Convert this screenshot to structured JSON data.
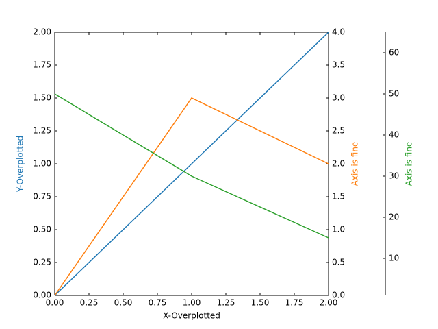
{
  "chart_data": {
    "type": "line",
    "x": [
      0,
      1,
      2
    ],
    "xlabel": "X-Overplotted",
    "ylabel": "Y-Overplotted",
    "y2label": "Axis is fine",
    "y3label": "Axis is fine",
    "xlim": [
      0,
      2
    ],
    "xticks": [
      {
        "value": 0,
        "label": "0.00"
      },
      {
        "value": 0.25,
        "label": "0.25"
      },
      {
        "value": 0.5,
        "label": "0.50"
      },
      {
        "value": 0.75,
        "label": "0.75"
      },
      {
        "value": 1,
        "label": "1.00"
      },
      {
        "value": 1.25,
        "label": "1.25"
      },
      {
        "value": 1.5,
        "label": "1.50"
      },
      {
        "value": 1.75,
        "label": "1.75"
      },
      {
        "value": 2,
        "label": "2.00"
      }
    ],
    "ylim": [
      0,
      2
    ],
    "yticks": [
      {
        "value": 0,
        "label": "0.00"
      },
      {
        "value": 0.25,
        "label": "0.25"
      },
      {
        "value": 0.5,
        "label": "0.50"
      },
      {
        "value": 0.75,
        "label": "0.75"
      },
      {
        "value": 1,
        "label": "1.00"
      },
      {
        "value": 1.25,
        "label": "1.25"
      },
      {
        "value": 1.5,
        "label": "1.50"
      },
      {
        "value": 1.75,
        "label": "1.75"
      },
      {
        "value": 2,
        "label": "2.00"
      }
    ],
    "y2lim": [
      0,
      4
    ],
    "y2ticks": [
      {
        "value": 0,
        "label": "0.0"
      },
      {
        "value": 0.5,
        "label": "0.5"
      },
      {
        "value": 1,
        "label": "1.0"
      },
      {
        "value": 1.5,
        "label": "1.5"
      },
      {
        "value": 2,
        "label": "2.0"
      },
      {
        "value": 2.5,
        "label": "2.5"
      },
      {
        "value": 3,
        "label": "3.0"
      },
      {
        "value": 3.5,
        "label": "3.5"
      },
      {
        "value": 4,
        "label": "4.0"
      }
    ],
    "y3lim": [
      1,
      65
    ],
    "y3ticks": [
      10,
      20,
      30,
      40,
      50,
      60
    ],
    "series": [
      {
        "color": "#1f77b4",
        "axis": "y",
        "values": [
          0,
          1,
          2
        ]
      },
      {
        "color": "#ff7f0e",
        "axis": "y2",
        "values": [
          0,
          3,
          2
        ]
      },
      {
        "color": "#2ca02c",
        "axis": "y3",
        "values": [
          50,
          30,
          15
        ]
      }
    ]
  }
}
